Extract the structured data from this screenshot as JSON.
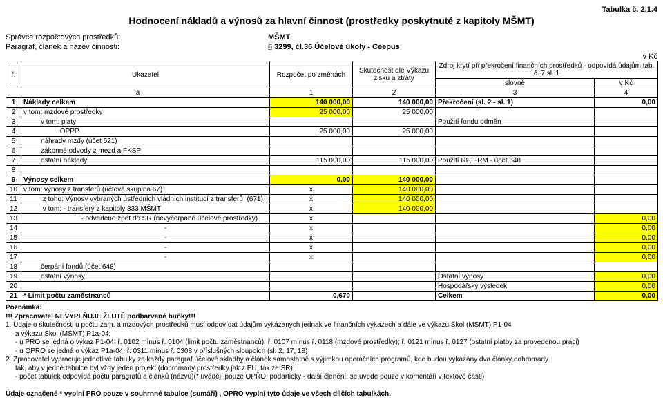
{
  "topRight": "Tabulka č. 2.1.4",
  "title": "Hodnocení nákladů a výnosů za hlavní činnost (prostředky poskytnuté z kapitoly MŠMT)",
  "header": {
    "line1_label": "Správce rozpočtových prostředků:",
    "line1_value": "MŠMT",
    "line2_label": "Paragraf, článek a název činnosti:",
    "line2_value": "§ 3299, čl.36 Účelové úkoly - Ceepus"
  },
  "inKc": "v Kč",
  "thead": {
    "r_col": "ř.",
    "ukazatel": "Ukazatel",
    "rozpocet": "Rozpočet po změnách",
    "skutecnost": "Skutečnost dle Výkazu zisku a ztráty",
    "zdroj_top": "Zdroj krytí při překročení finančních prostředků - odpovídá údajům tab. č. 7 sl. 1",
    "zdroj_l": "slovně",
    "zdroj_r": "v Kč",
    "a": "a",
    "n1": "1",
    "n2": "2",
    "n3": "3",
    "n4": "4"
  },
  "rows": [
    {
      "n": "1",
      "label": "Náklady celkem",
      "c1": "140 000,00",
      "c2": "140 000,00",
      "c3": "Překročení (sl. 2 - sl. 1)",
      "c4": "0,00",
      "bold": true,
      "y1": true,
      "y2": false,
      "y3": false,
      "y4": false
    },
    {
      "n": "2",
      "label": "v tom: mzdové prostředky",
      "c1": "25 000,00",
      "c2": "25 000,00",
      "c3": "",
      "c4": "",
      "y1": true,
      "y2": false
    },
    {
      "n": "3",
      "label": "         v tom: platy",
      "c1": "",
      "c2": "",
      "c3": "Použití fondu odměn",
      "c4": ""
    },
    {
      "n": "4",
      "label": "                   OPPP",
      "c1": "25 000,00",
      "c2": "25 000,00",
      "c3": "",
      "c4": ""
    },
    {
      "n": "5",
      "label": "         náhrady mzdy (účet 521)",
      "c1": "",
      "c2": "",
      "c3": "",
      "c4": ""
    },
    {
      "n": "6",
      "label": "         zákonné odvody z mezd a FKSP",
      "c1": "",
      "c2": "",
      "c3": "",
      "c4": ""
    },
    {
      "n": "7",
      "label": "         ostatní náklady",
      "c1": "115 000,00",
      "c2": "115 000,00",
      "c3": "Použití RF, FRM - účet 648",
      "c4": ""
    },
    {
      "n": "8",
      "label": "",
      "c1": "",
      "c2": "",
      "c3": "",
      "c4": ""
    },
    {
      "n": "9",
      "label": "Výnosy celkem",
      "c1": "0,00",
      "c2": "140 000,00",
      "c3": "",
      "c4": "",
      "bold": true,
      "y1": true,
      "y2": true
    },
    {
      "n": "10",
      "label": "v tom: výnosy z transferů (účtová skupina 67)",
      "c1": "x",
      "c2": "140 000,00",
      "c3": "",
      "c4": "",
      "y2": true,
      "c1c": true
    },
    {
      "n": "11",
      "label": "          z toho: Výnosy vybraných ústředních vládních institucí z transferů  (671)",
      "c1": "x",
      "c2": "140 000,00",
      "c3": "",
      "c4": "",
      "y2": true,
      "c1c": true
    },
    {
      "n": "12",
      "label": "          v tom: - transfery z kapitoly 333 MŠMT",
      "c1": "x",
      "c2": "140 000,00",
      "c3": "",
      "c4": "",
      "y2": true,
      "c1c": true
    },
    {
      "n": "13",
      "label": "                              - odvedeno zpět do SR (nevyčerpané účelové prostředky)",
      "c1": "x",
      "c2": "",
      "c3": "",
      "c4": "0,00",
      "y4": true,
      "c1c": true
    },
    {
      "n": "14",
      "label": "                     -",
      "c1": "x",
      "c2": "",
      "c3": "",
      "c4": "0,00",
      "y4": true,
      "c1c": true,
      "lc": true
    },
    {
      "n": "15",
      "label": "                     -",
      "c1": "x",
      "c2": "",
      "c3": "",
      "c4": "0,00",
      "y4": true,
      "c1c": true,
      "lc": true
    },
    {
      "n": "16",
      "label": "                     -",
      "c1": "x",
      "c2": "",
      "c3": "",
      "c4": "0,00",
      "y4": true,
      "c1c": true,
      "lc": true
    },
    {
      "n": "17",
      "label": "                     -",
      "c1": "x",
      "c2": "",
      "c3": "",
      "c4": "0,00",
      "y4": true,
      "c1c": true,
      "lc": true
    },
    {
      "n": "18",
      "label": "         čerpání fondů (účet 648)",
      "c1": "",
      "c2": "",
      "c3": "",
      "c4": ""
    },
    {
      "n": "19",
      "label": "         ostatní výnosy",
      "c1": "",
      "c2": "",
      "c3": "Ostatní výnosy",
      "c4": "0,00",
      "y4": true
    },
    {
      "n": "20",
      "label": "",
      "c1": "",
      "c2": "",
      "c3": "Hospodářský výsledek",
      "c4": "0,00",
      "y4": true
    },
    {
      "n": "21",
      "label": "* Limit počtu zaměstnanců",
      "c1": "0,670",
      "c2": "",
      "c3": "Celkem",
      "c4": "0,00",
      "bold": true,
      "y4": true
    }
  ],
  "notes": {
    "poznamka": "Poznámka:",
    "l1": "!!! Zpracovatel NEVYPLŇUJE ŽLUTÉ podbarvené buňky!!!",
    "l2": "1. Údaje o skutečnosti u počtu zam. a mzdových prostředků musí odpovídat údajům vykázaných jednak ve finančních výkazech a dále  ve výkazu Škol (MŠMT) P1-04",
    "l2b": "a výkazu Škol (MŠMT) P1a-04:",
    "l3": "- u PŘO se jedná o výkaz P1-04: ř. 0102 mínus ř. 0104 (limit počtu zaměstnanců); ř. 0107 mínus ř. 0118 (mzdové prostředky); ř. 0121 mínus ř. 0127 (ostatní platby za provedenou práci)",
    "l4": "- u OPŘO se jedná o výkaz P1a-04: ř. 0311 mínus ř. 0308 v příslušných sloupcích (sl. 2, 17, 18)",
    "l5": "2. Zpracovatel vypracuje jednotlivé tabulky za každý paragraf účelové skladby a článek samostatně s výjimkou operačních programů, kde budou vykázány dva články dohromady",
    "l5b": "tak, aby v jedné tabulce byl vždy jeden projekt (dohromady prostředky jak z EU, tak ze SR).",
    "l6": "- počet tabulek odpovídá počtu paragrafů a článků (názvu)(* uvádějí pouze OPŘO; podarticky - další členění, se uvede pouze v komentáři v textové části)",
    "l7": "Údaje označené * vyplní PŘO pouze v souhrnné tabulce (sumáři) , OPŘO vyplní tyto údaje ve všech dílčích tabulkách."
  }
}
